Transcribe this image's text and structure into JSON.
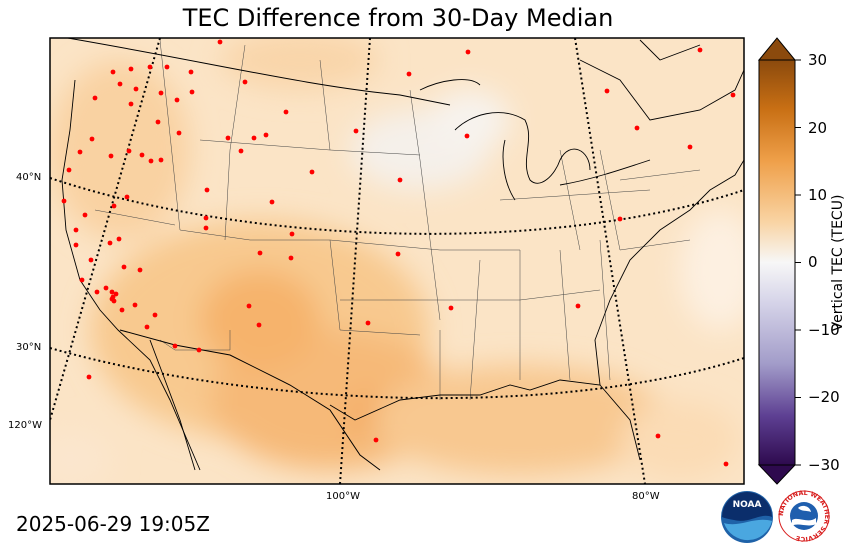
{
  "title": "TEC Difference from 30-Day Median",
  "timestamp": "2025-06-29 19:05Z",
  "latitude_labels": [
    "40°N",
    "30°N",
    "120°W"
  ],
  "longitude_labels": [
    "100°W",
    "80°W"
  ],
  "colorbar": {
    "label": "Vertical TEC (TECU)",
    "min": -30,
    "max": 30,
    "ticks": [
      "30",
      "20",
      "10",
      "0",
      "−10",
      "−20",
      "−30"
    ],
    "positive_color": "#8b4a0d",
    "negative_color": "#2e0a4e",
    "zero_color": "#f7f7f7"
  },
  "station_marker_color": "#ff0000",
  "logos": {
    "noaa": "NOAA",
    "nws": "NATIONAL WEATHER SERVICE"
  }
}
